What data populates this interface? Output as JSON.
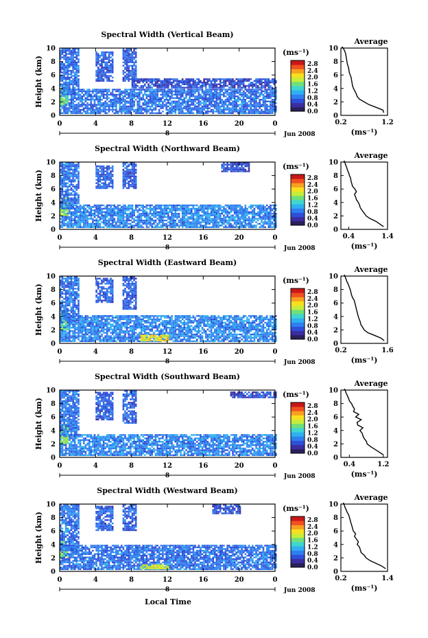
{
  "units_label": "(ms⁻¹)",
  "xlabel": "Local Time",
  "date_label": "Jun 2008",
  "day_label": "8",
  "y_axis_label": "Height (km)",
  "avg_title": "Average",
  "avg_xlabel": "(ms⁻¹)",
  "colors": {
    "colormap": [
      "#2a1f5c",
      "#3b2ea0",
      "#2f4fd8",
      "#2f7ff0",
      "#2fb0f0",
      "#3fd6d0",
      "#6fe07a",
      "#c8ec3a",
      "#f8e020",
      "#f8a020",
      "#f05020",
      "#c81818"
    ]
  },
  "chart_data": [
    {
      "type": "heatmap",
      "title": "Spectral Width (Vertical Beam)",
      "x_ticks": [
        "0",
        "4",
        "8",
        "12",
        "16",
        "20",
        "0"
      ],
      "y_ticks": [
        "0",
        "2",
        "4",
        "6",
        "8",
        "10"
      ],
      "xlim": [
        0,
        24
      ],
      "ylim": [
        0,
        10
      ],
      "colorbar_ticks": [
        "0.0",
        "0.4",
        "0.8",
        "1.2",
        "1.6",
        "2.0",
        "2.4",
        "2.8"
      ],
      "profile": {
        "x_ticks": [
          "0.2",
          "1.2"
        ],
        "xlim": [
          0.2,
          1.2
        ],
        "x": [
          1.12,
          1.1,
          0.95,
          0.8,
          0.7,
          0.6,
          0.55,
          0.53,
          0.5,
          0.47,
          0.45,
          0.44,
          0.43,
          0.42,
          0.4,
          0.38,
          0.37,
          0.36,
          0.34,
          0.33,
          0.32,
          0.31,
          0.3,
          0.28,
          0.25,
          0.22
        ],
        "y": [
          0.4,
          0.8,
          1.2,
          1.6,
          2.0,
          2.4,
          2.8,
          3.2,
          3.6,
          4.0,
          4.4,
          4.8,
          5.2,
          5.6,
          6.0,
          6.4,
          6.8,
          7.2,
          7.6,
          8.0,
          8.4,
          8.8,
          9.2,
          9.6,
          10.0,
          10.2
        ]
      },
      "regions": [
        {
          "x": [
            0,
            24
          ],
          "y": [
            0.2,
            3.9
          ],
          "v": 0.7
        },
        {
          "x": [
            0,
            1
          ],
          "y": [
            1.5,
            4.5
          ],
          "v": 1.5
        },
        {
          "x": [
            0,
            2
          ],
          "y": [
            3,
            9.8
          ],
          "v": 0.7
        },
        {
          "x": [
            4,
            6
          ],
          "y": [
            5,
            9.5
          ],
          "v": 0.6
        },
        {
          "x": [
            7,
            8.5
          ],
          "y": [
            5,
            9.8
          ],
          "v": 0.6
        },
        {
          "x": [
            8,
            24
          ],
          "y": [
            4,
            5.3
          ],
          "v": 0.5
        }
      ]
    },
    {
      "type": "heatmap",
      "title": "Spectral Width (Northward Beam)",
      "x_ticks": [
        "0",
        "4",
        "8",
        "12",
        "16",
        "20",
        "0"
      ],
      "y_ticks": [
        "0",
        "2",
        "4",
        "6",
        "8",
        "10"
      ],
      "xlim": [
        0,
        24
      ],
      "ylim": [
        0,
        10
      ],
      "colorbar_ticks": [
        "0.0",
        "0.4",
        "0.8",
        "1.2",
        "1.6",
        "2.0",
        "2.4",
        "2.8"
      ],
      "profile": {
        "x_ticks": [
          "0.4",
          "1.4"
        ],
        "xlim": [
          0.2,
          1.4
        ],
        "x": [
          1.3,
          1.2,
          1.1,
          0.95,
          0.85,
          0.8,
          0.75,
          0.7,
          0.68,
          0.65,
          0.6,
          0.58,
          0.55,
          0.6,
          0.56,
          0.5,
          0.48,
          0.46,
          0.45,
          0.42,
          0.4,
          0.37,
          0.35,
          0.32,
          0.3,
          0.28
        ],
        "y": [
          0.4,
          0.8,
          1.2,
          1.6,
          2.0,
          2.4,
          2.8,
          3.2,
          3.6,
          4.0,
          4.4,
          4.8,
          5.2,
          5.6,
          6.0,
          6.4,
          6.8,
          7.2,
          7.6,
          8.0,
          8.4,
          8.8,
          9.2,
          9.6,
          10.0,
          10.2
        ]
      },
      "regions": [
        {
          "x": [
            0,
            24
          ],
          "y": [
            0.2,
            3.6
          ],
          "v": 0.8
        },
        {
          "x": [
            0,
            1
          ],
          "y": [
            2,
            5
          ],
          "v": 1.6
        },
        {
          "x": [
            0,
            2
          ],
          "y": [
            3,
            9.8
          ],
          "v": 0.7
        },
        {
          "x": [
            4,
            6
          ],
          "y": [
            6,
            9.5
          ],
          "v": 0.6
        },
        {
          "x": [
            7,
            8.5
          ],
          "y": [
            6,
            9.8
          ],
          "v": 0.6
        },
        {
          "x": [
            18,
            21
          ],
          "y": [
            8.5,
            9.8
          ],
          "v": 0.5
        }
      ]
    },
    {
      "type": "heatmap",
      "title": "Spectral Width (Eastward Beam)",
      "x_ticks": [
        "0",
        "4",
        "8",
        "12",
        "16",
        "20",
        "0"
      ],
      "y_ticks": [
        "0",
        "2",
        "4",
        "6",
        "8",
        "10"
      ],
      "xlim": [
        0,
        24
      ],
      "ylim": [
        0,
        10
      ],
      "colorbar_ticks": [
        "0.0",
        "0.4",
        "0.8",
        "1.2",
        "1.6",
        "2.0",
        "2.4",
        "2.8"
      ],
      "profile": {
        "x_ticks": [
          "0.2",
          "1.6"
        ],
        "xlim": [
          0.2,
          1.6
        ],
        "x": [
          1.5,
          1.4,
          1.2,
          1.0,
          0.9,
          0.85,
          0.8,
          0.78,
          0.75,
          0.72,
          0.7,
          0.68,
          0.66,
          0.64,
          0.62,
          0.6,
          0.55,
          0.52,
          0.5,
          0.48,
          0.45,
          0.42,
          0.38,
          0.35,
          0.32,
          0.3
        ],
        "y": [
          0.4,
          0.8,
          1.2,
          1.6,
          2.0,
          2.4,
          2.8,
          3.2,
          3.6,
          4.0,
          4.4,
          4.8,
          5.2,
          5.6,
          6.0,
          6.4,
          6.8,
          7.2,
          7.6,
          8.0,
          8.4,
          8.8,
          9.2,
          9.6,
          10.0,
          10.2
        ]
      },
      "regions": [
        {
          "x": [
            0,
            24
          ],
          "y": [
            0.2,
            4.2
          ],
          "v": 0.8
        },
        {
          "x": [
            9,
            12
          ],
          "y": [
            0.3,
            1.2
          ],
          "v": 2.0
        },
        {
          "x": [
            0,
            1
          ],
          "y": [
            2,
            5
          ],
          "v": 1.5
        },
        {
          "x": [
            0,
            2
          ],
          "y": [
            3,
            9.8
          ],
          "v": 0.7
        },
        {
          "x": [
            4,
            6
          ],
          "y": [
            6,
            9.6
          ],
          "v": 0.6
        },
        {
          "x": [
            7,
            8.5
          ],
          "y": [
            5,
            9.8
          ],
          "v": 0.6
        }
      ]
    },
    {
      "type": "heatmap",
      "title": "Spectral Width (Southward Beam)",
      "x_ticks": [
        "0",
        "4",
        "8",
        "12",
        "16",
        "20",
        "0"
      ],
      "y_ticks": [
        "0",
        "2",
        "4",
        "6",
        "8",
        "10"
      ],
      "xlim": [
        0,
        24
      ],
      "ylim": [
        0,
        10
      ],
      "colorbar_ticks": [
        "0.0",
        "0.4",
        "0.8",
        "1.2",
        "1.6",
        "2.0",
        "2.4",
        "2.8"
      ],
      "profile": {
        "x_ticks": [
          "0.4",
          "1.2"
        ],
        "xlim": [
          0.2,
          1.3
        ],
        "x": [
          1.2,
          1.1,
          1.0,
          0.9,
          0.82,
          0.8,
          0.75,
          0.72,
          0.7,
          0.65,
          0.72,
          0.6,
          0.58,
          0.68,
          0.55,
          0.62,
          0.5,
          0.52,
          0.48,
          0.45,
          0.4,
          0.38,
          0.35,
          0.32,
          0.3,
          0.28
        ],
        "y": [
          0.4,
          0.8,
          1.2,
          1.6,
          2.0,
          2.4,
          2.8,
          3.2,
          3.6,
          4.0,
          4.4,
          4.8,
          5.2,
          5.6,
          6.0,
          6.4,
          6.8,
          7.2,
          7.6,
          8.0,
          8.4,
          8.8,
          9.2,
          9.6,
          10.0,
          10.2
        ]
      },
      "regions": [
        {
          "x": [
            0,
            24
          ],
          "y": [
            0.2,
            3.4
          ],
          "v": 0.8
        },
        {
          "x": [
            0,
            1
          ],
          "y": [
            2,
            5
          ],
          "v": 1.6
        },
        {
          "x": [
            0,
            2
          ],
          "y": [
            3,
            9.8
          ],
          "v": 0.7
        },
        {
          "x": [
            4,
            6
          ],
          "y": [
            5.5,
            9.6
          ],
          "v": 0.6
        },
        {
          "x": [
            7,
            8.5
          ],
          "y": [
            5,
            9.8
          ],
          "v": 0.6
        },
        {
          "x": [
            19,
            24
          ],
          "y": [
            8.8,
            9.8
          ],
          "v": 0.5
        }
      ]
    },
    {
      "type": "heatmap",
      "title": "Spectral Width (Westward Beam)",
      "x_ticks": [
        "0",
        "4",
        "8",
        "12",
        "16",
        "20",
        "0"
      ],
      "y_ticks": [
        "0",
        "2",
        "4",
        "6",
        "8",
        "10"
      ],
      "xlim": [
        0,
        24
      ],
      "ylim": [
        0,
        10
      ],
      "colorbar_ticks": [
        "0.0",
        "0.4",
        "0.8",
        "1.2",
        "1.6",
        "2.0",
        "2.4",
        "2.8"
      ],
      "profile": {
        "x_ticks": [
          "0.2",
          "1.4"
        ],
        "xlim": [
          0.2,
          1.4
        ],
        "x": [
          1.35,
          1.25,
          1.1,
          0.95,
          0.85,
          0.8,
          0.72,
          0.7,
          0.68,
          0.62,
          0.65,
          0.6,
          0.55,
          0.58,
          0.52,
          0.5,
          0.48,
          0.46,
          0.44,
          0.42,
          0.4,
          0.36,
          0.33,
          0.3,
          0.28,
          0.26
        ],
        "y": [
          0.4,
          0.8,
          1.2,
          1.6,
          2.0,
          2.4,
          2.8,
          3.2,
          3.6,
          4.0,
          4.4,
          4.8,
          5.2,
          5.6,
          6.0,
          6.4,
          6.8,
          7.2,
          7.6,
          8.0,
          8.4,
          8.8,
          9.2,
          9.6,
          10.0,
          10.2
        ]
      },
      "regions": [
        {
          "x": [
            0,
            24
          ],
          "y": [
            0.2,
            3.8
          ],
          "v": 0.7
        },
        {
          "x": [
            9,
            12
          ],
          "y": [
            0.3,
            1.0
          ],
          "v": 1.8
        },
        {
          "x": [
            0,
            1
          ],
          "y": [
            2,
            4.5
          ],
          "v": 1.5
        },
        {
          "x": [
            0,
            2
          ],
          "y": [
            3,
            9.8
          ],
          "v": 0.7
        },
        {
          "x": [
            4,
            6
          ],
          "y": [
            6,
            9.6
          ],
          "v": 0.6
        },
        {
          "x": [
            7,
            8.5
          ],
          "y": [
            6,
            9.8
          ],
          "v": 0.6
        },
        {
          "x": [
            17,
            20
          ],
          "y": [
            8.5,
            9.8
          ],
          "v": 0.5
        }
      ]
    }
  ]
}
